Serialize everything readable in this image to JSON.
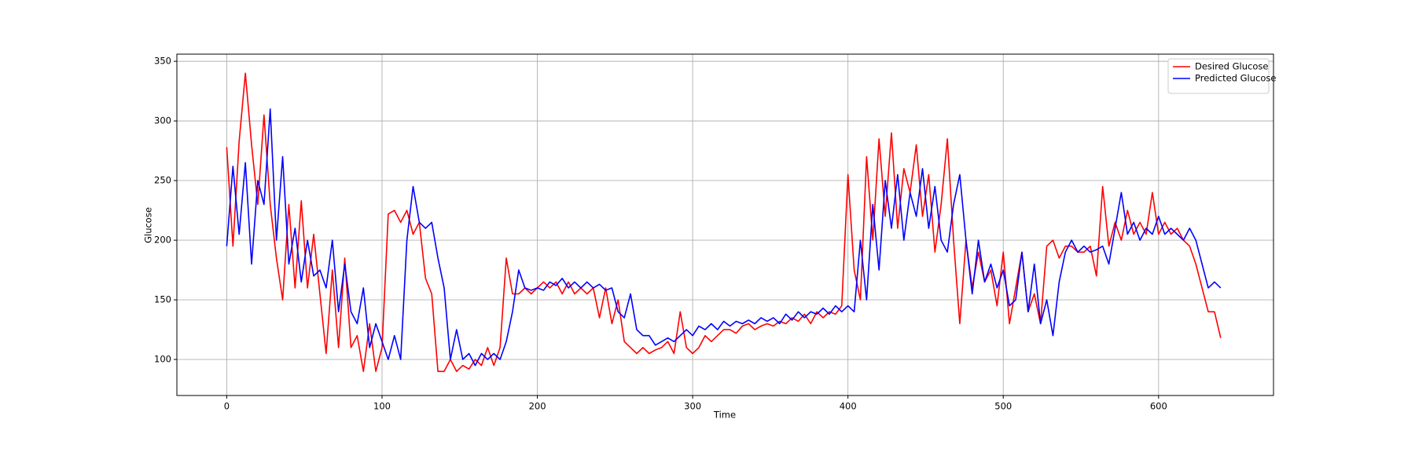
{
  "chart_data": {
    "type": "line",
    "xlabel": "Time",
    "ylabel": "Glucose",
    "x": [
      0,
      4,
      8,
      12,
      16,
      20,
      24,
      28,
      32,
      36,
      40,
      44,
      48,
      52,
      56,
      60,
      64,
      68,
      72,
      76,
      80,
      84,
      88,
      92,
      96,
      100,
      104,
      108,
      112,
      116,
      120,
      124,
      128,
      132,
      136,
      140,
      144,
      148,
      152,
      156,
      160,
      164,
      168,
      172,
      176,
      180,
      184,
      188,
      192,
      196,
      200,
      204,
      208,
      212,
      216,
      220,
      224,
      228,
      232,
      236,
      240,
      244,
      248,
      252,
      256,
      260,
      264,
      268,
      272,
      276,
      280,
      284,
      288,
      292,
      296,
      300,
      304,
      308,
      312,
      316,
      320,
      324,
      328,
      332,
      336,
      340,
      344,
      348,
      352,
      356,
      360,
      364,
      368,
      372,
      376,
      380,
      384,
      388,
      392,
      396,
      400,
      404,
      408,
      412,
      416,
      420,
      424,
      428,
      432,
      436,
      440,
      444,
      448,
      452,
      456,
      460,
      464,
      468,
      472,
      476,
      480,
      484,
      488,
      492,
      496,
      500,
      504,
      508,
      512,
      516,
      520,
      524,
      528,
      532,
      536,
      540,
      544,
      548,
      552,
      556,
      560,
      564,
      568,
      572,
      576,
      580,
      584,
      588,
      592,
      596,
      600,
      604,
      608,
      612,
      616,
      620,
      624,
      628,
      632,
      636,
      640
    ],
    "series": [
      {
        "name": "Desired Glucose",
        "color": "#ff0000",
        "values": [
          278,
          195,
          283,
          340,
          280,
          230,
          305,
          230,
          185,
          150,
          230,
          160,
          233,
          160,
          205,
          155,
          105,
          175,
          110,
          185,
          110,
          120,
          90,
          130,
          90,
          110,
          222,
          225,
          215,
          225,
          205,
          215,
          168,
          155,
          90,
          90,
          100,
          90,
          95,
          92,
          100,
          95,
          110,
          95,
          110,
          185,
          155,
          155,
          160,
          155,
          160,
          165,
          160,
          165,
          155,
          165,
          155,
          160,
          155,
          160,
          135,
          160,
          130,
          150,
          115,
          110,
          105,
          110,
          105,
          108,
          110,
          115,
          105,
          140,
          110,
          105,
          110,
          120,
          115,
          120,
          125,
          125,
          122,
          128,
          130,
          125,
          128,
          130,
          128,
          132,
          130,
          135,
          132,
          138,
          130,
          140,
          135,
          140,
          138,
          145,
          255,
          175,
          150,
          270,
          200,
          285,
          220,
          290,
          210,
          260,
          240,
          280,
          220,
          255,
          190,
          230,
          285,
          200,
          130,
          200,
          160,
          190,
          165,
          175,
          145,
          190,
          130,
          160,
          190,
          140,
          155,
          130,
          195,
          200,
          185,
          195,
          195,
          190,
          190,
          195,
          170,
          245,
          195,
          215,
          200,
          225,
          205,
          215,
          205,
          240,
          205,
          215,
          205,
          210,
          200,
          195,
          180,
          160,
          140,
          140,
          118
        ]
      },
      {
        "name": "Predicted Glucose",
        "color": "#0000ff",
        "values": [
          195,
          262,
          205,
          265,
          180,
          250,
          230,
          310,
          200,
          270,
          180,
          210,
          165,
          200,
          170,
          175,
          160,
          200,
          140,
          180,
          140,
          130,
          160,
          110,
          130,
          115,
          100,
          120,
          100,
          200,
          245,
          215,
          210,
          215,
          185,
          160,
          100,
          125,
          100,
          105,
          95,
          105,
          100,
          105,
          100,
          115,
          140,
          175,
          160,
          158,
          160,
          158,
          165,
          162,
          168,
          160,
          165,
          160,
          165,
          160,
          163,
          158,
          160,
          140,
          135,
          155,
          125,
          120,
          120,
          112,
          115,
          118,
          115,
          120,
          125,
          120,
          128,
          125,
          130,
          125,
          132,
          128,
          132,
          130,
          133,
          130,
          135,
          132,
          135,
          130,
          138,
          133,
          140,
          135,
          140,
          138,
          143,
          138,
          145,
          140,
          145,
          140,
          200,
          150,
          230,
          175,
          250,
          210,
          255,
          200,
          240,
          220,
          260,
          210,
          245,
          200,
          190,
          230,
          255,
          200,
          155,
          200,
          165,
          180,
          160,
          175,
          145,
          150,
          190,
          140,
          180,
          130,
          150,
          120,
          165,
          190,
          200,
          190,
          195,
          190,
          192,
          195,
          180,
          210,
          240,
          205,
          215,
          200,
          210,
          205,
          220,
          205,
          210,
          205,
          200,
          210,
          200,
          180,
          160,
          165,
          160
        ]
      }
    ],
    "xlim": [
      -32.1,
      674
    ],
    "ylim": [
      69.8,
      356
    ],
    "xticks": [
      0,
      100,
      200,
      300,
      400,
      500,
      600
    ],
    "yticks": [
      100,
      150,
      200,
      250,
      300,
      350
    ],
    "grid": true,
    "legend": "upper right"
  }
}
